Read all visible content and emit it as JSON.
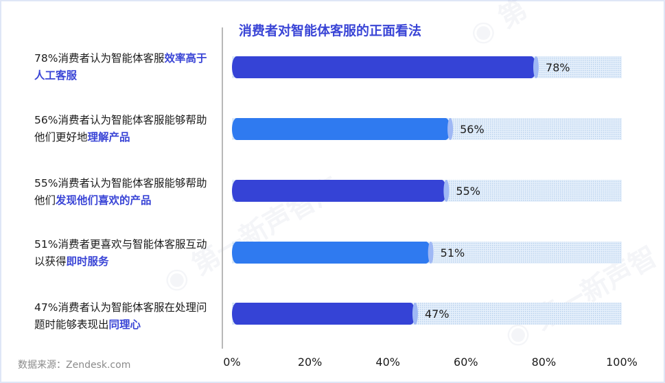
{
  "chart_data": {
    "type": "bar",
    "orientation": "horizontal",
    "title": "消费者对智能体客服的正面看法",
    "categories": [
      {
        "text": "78%消费者认为智能体客服",
        "highlight": "效率高于人工客服",
        "suffix": ""
      },
      {
        "text": "56%消费者认为智能体客服能够帮助他们更好地",
        "highlight": "理解产品",
        "suffix": ""
      },
      {
        "text": "55%消费者认为智能体客服能够帮助他们",
        "highlight": "发现他们喜欢的产品",
        "suffix": ""
      },
      {
        "text": "51%消费者更喜欢与智能体客服互动以获得",
        "highlight": "即时服务",
        "suffix": ""
      },
      {
        "text": "47%消费者认为智能体客服在处理问题时能够表现出",
        "highlight": "同理心",
        "suffix": ""
      }
    ],
    "values": [
      78,
      56,
      55,
      51,
      47
    ],
    "data_labels": [
      "78%",
      "56%",
      "55%",
      "51%",
      "47%"
    ],
    "bar_colors": [
      "#3543d6",
      "#2f7af0",
      "#3543d6",
      "#2f7af0",
      "#3543d6"
    ],
    "background_bar_color": "#cde2f6",
    "xlim": [
      0,
      100
    ],
    "xticks": [
      "0%",
      "20%",
      "40%",
      "60%",
      "80%",
      "100%"
    ],
    "xlabel": "",
    "ylabel": "",
    "grid": false
  },
  "source_text": "数据来源：Zendesk.com",
  "colors": {
    "title": "#3a45d6",
    "highlight": "#3a45d6"
  }
}
